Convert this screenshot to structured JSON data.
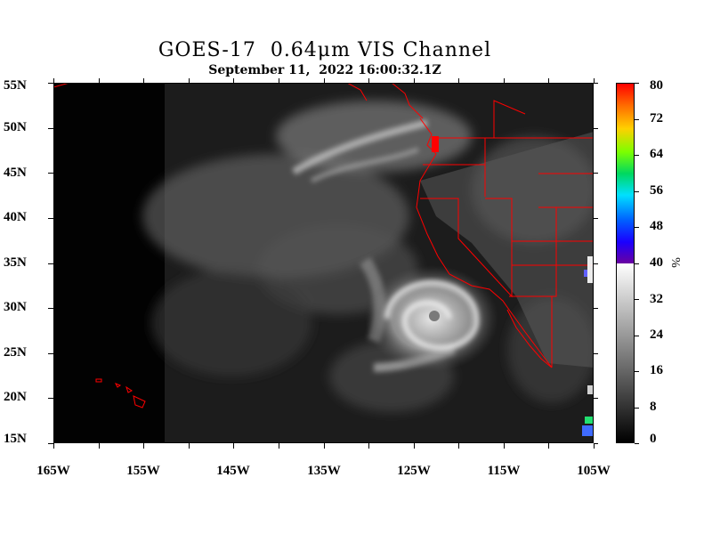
{
  "header": {
    "title": "GOES-17  0.64μm VIS Channel",
    "subtitle": "September 11,  2022 16:00:32.1Z"
  },
  "map": {
    "lat_labels": [
      "55N",
      "50N",
      "45N",
      "40N",
      "35N",
      "30N",
      "25N",
      "20N",
      "15N"
    ],
    "lon_labels": [
      "165W",
      "155W",
      "145W",
      "135W",
      "125W",
      "115W",
      "105W"
    ],
    "lat_range": [
      15,
      55
    ],
    "lon_range": [
      -165,
      -105
    ],
    "boundary_color": "#ff0000",
    "cloud_color": "#e8e8e8"
  },
  "colorbar": {
    "ticks": [
      "80",
      "72",
      "64",
      "56",
      "48",
      "40",
      "32",
      "24",
      "16",
      "8",
      "0"
    ],
    "range": [
      0,
      80
    ],
    "unit": "%"
  }
}
